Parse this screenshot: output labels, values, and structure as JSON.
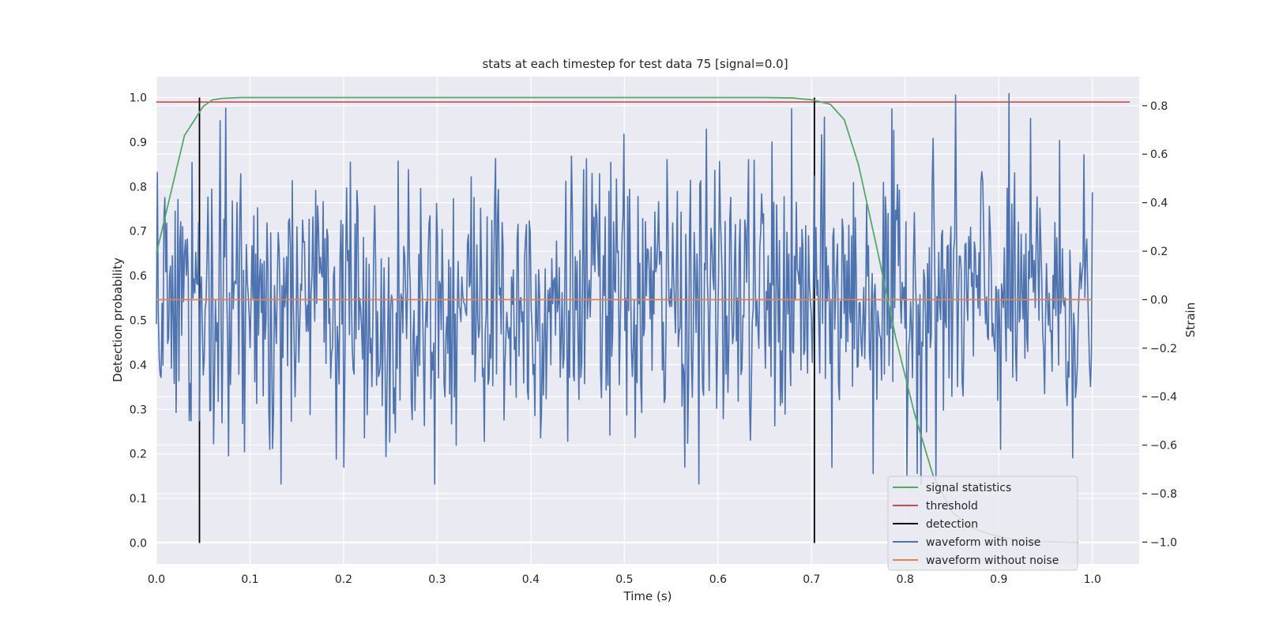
{
  "chart_data": {
    "type": "line",
    "title": "stats at each timestep for test data 75 [signal=0.0]",
    "xlabel": "Time (s)",
    "ylabel": "Detection probability",
    "y2label": "Strain",
    "xlim": [
      0.0,
      1.05
    ],
    "ylim": [
      -0.047,
      1.047
    ],
    "y2lim": [
      -1.09,
      0.92
    ],
    "grid": true,
    "legend_position": "lower-right",
    "x_ticks": [
      "0.0",
      "0.1",
      "0.2",
      "0.3",
      "0.4",
      "0.5",
      "0.6",
      "0.7",
      "0.8",
      "0.9",
      "1.0"
    ],
    "y_ticks": [
      "0.0",
      "0.1",
      "0.2",
      "0.3",
      "0.4",
      "0.5",
      "0.6",
      "0.7",
      "0.8",
      "0.9",
      "1.0"
    ],
    "y2_ticks": [
      "−1.0",
      "−0.8",
      "−0.6",
      "−0.4",
      "−0.2",
      "0.0",
      "0.2",
      "0.4",
      "0.6",
      "0.8"
    ],
    "series": [
      {
        "name": "signal statistics",
        "axis": "left",
        "color": "#55a868",
        "x": [
          0.0,
          0.03,
          0.05,
          0.06,
          0.07,
          0.09,
          0.15,
          0.3,
          0.5,
          0.65,
          0.68,
          0.7,
          0.72,
          0.735,
          0.75,
          0.77,
          0.79,
          0.81,
          0.83,
          0.85,
          0.87,
          0.89,
          0.91,
          0.93,
          0.95,
          0.97,
          0.985
        ],
        "y": [
          0.65,
          0.915,
          0.98,
          0.995,
          0.998,
          1.0,
          1.0,
          1.0,
          1.0,
          1.0,
          0.999,
          0.995,
          0.985,
          0.95,
          0.85,
          0.66,
          0.46,
          0.29,
          0.15,
          0.07,
          0.035,
          0.02,
          0.01,
          0.005,
          0.003,
          0.002,
          0.001
        ]
      },
      {
        "name": "threshold",
        "axis": "left",
        "color": "#c44e52",
        "x": [
          0.0,
          1.04
        ],
        "y": [
          0.99,
          0.99
        ]
      },
      {
        "name": "detection",
        "color": "#000000",
        "x": [
          0.046,
          0.703
        ],
        "ymin": 0.0,
        "ymax": 1.0
      },
      {
        "name": "waveform with noise",
        "axis": "right",
        "color": "#4c72b0",
        "x_range": [
          0.0,
          1.0
        ],
        "samples": 1000,
        "amplitude_std": 0.29,
        "min": -0.76,
        "max": 0.85
      },
      {
        "name": "waveform without noise",
        "axis": "right",
        "color": "#dd8452",
        "x": [
          0.0,
          1.0
        ],
        "y": [
          0.0,
          0.0
        ]
      }
    ]
  }
}
